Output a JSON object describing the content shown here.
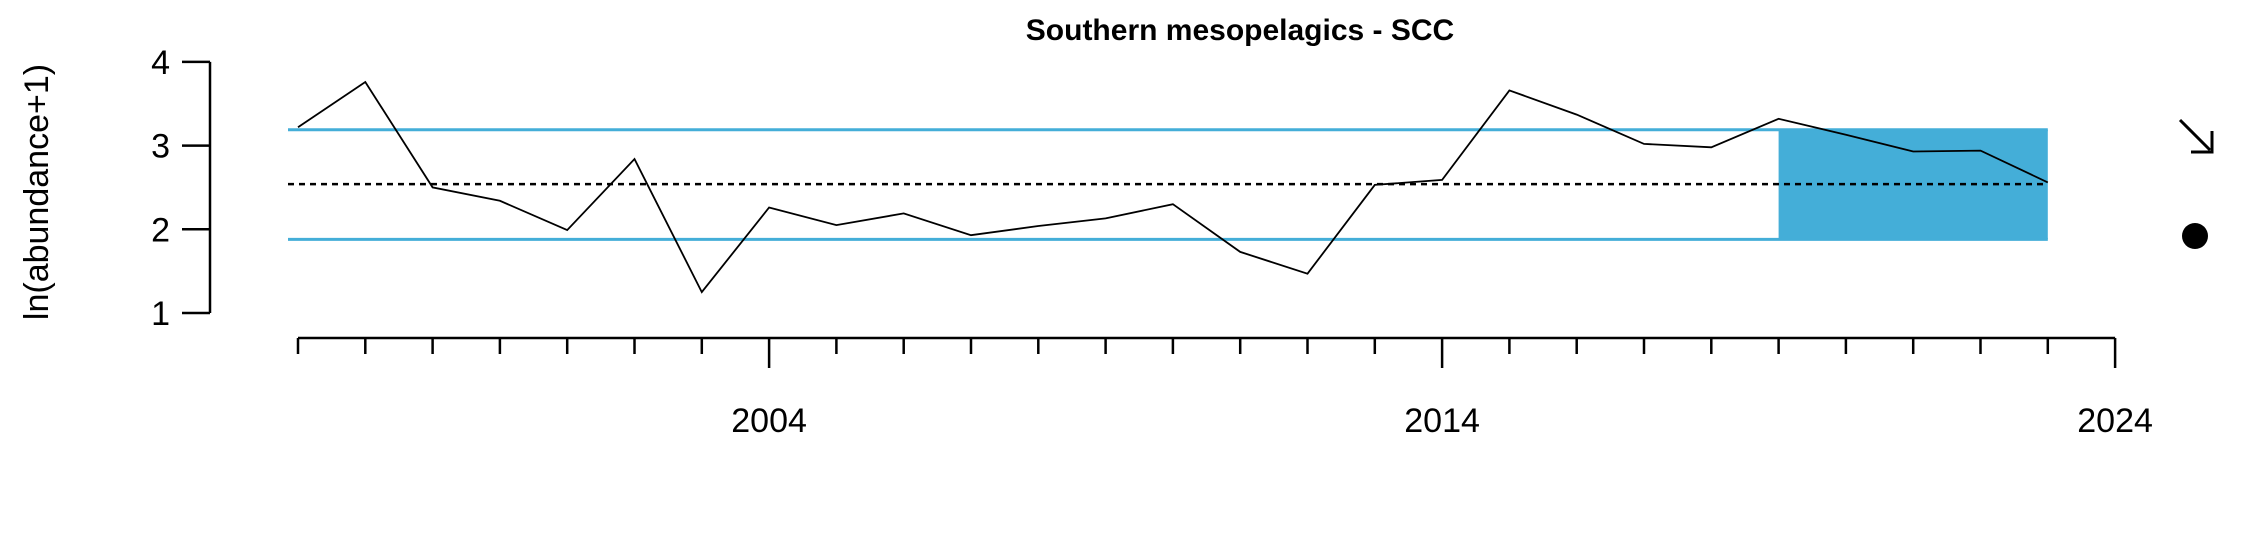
{
  "chart_data": {
    "type": "line",
    "title": "Southern mesopelagics - SCC",
    "xlabel": "",
    "ylabel": "ln(abundance+1)",
    "xlim": [
      1997,
      2024
    ],
    "ylim": [
      1,
      4
    ],
    "x_ticks": [
      2004,
      2014,
      2024
    ],
    "y_ticks": [
      1,
      2,
      3,
      4
    ],
    "series": [
      {
        "x": [
          1997,
          1998,
          1999,
          2000,
          2001,
          2002,
          2003,
          2004,
          2005,
          2006,
          2007,
          2008,
          2009,
          2010,
          2011,
          2012,
          2013,
          2014,
          2015,
          2016,
          2017,
          2018,
          2019,
          2020,
          2021,
          2022,
          2023
        ],
        "values": [
          3.22,
          3.76,
          2.5,
          2.34,
          1.99,
          2.84,
          1.25,
          2.26,
          2.05,
          2.19,
          1.93,
          2.04,
          2.13,
          2.3,
          1.73,
          1.47,
          2.53,
          2.59,
          3.66,
          3.37,
          3.02,
          2.98,
          3.32,
          3.13,
          2.93,
          2.94,
          2.56
        ],
        "color": "#000000"
      }
    ],
    "mean": 2.54,
    "upper_sd": 3.19,
    "lower_sd": 1.88,
    "recent_window": [
      2019,
      2023
    ],
    "reference_line_color": "#44AED8",
    "recent_fill_color": "#44AED8",
    "trend_symbol": "↘",
    "status_symbol": "●"
  }
}
